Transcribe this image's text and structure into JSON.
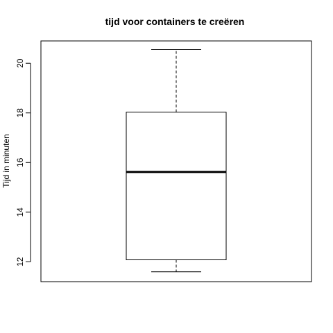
{
  "chart_data": {
    "type": "boxplot",
    "title": "tijd voor containers te creëren",
    "xlabel": "",
    "ylabel": "Tijd in minuten",
    "ylim": [
      11.2,
      20.9
    ],
    "yticks": [
      12,
      14,
      16,
      18,
      20
    ],
    "ytick_labels": [
      "12",
      "14",
      "16",
      "18",
      "20"
    ],
    "box": {
      "min": 11.6,
      "q1": 12.08,
      "median": 15.62,
      "q3": 18.03,
      "max": 20.55
    },
    "grid": false,
    "legend": "none"
  }
}
